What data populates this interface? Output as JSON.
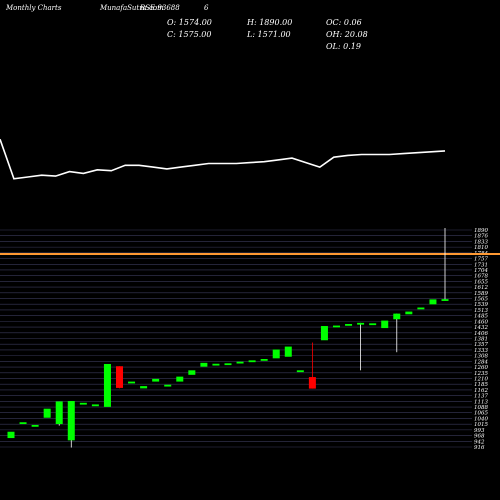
{
  "header": {
    "title": "Monthly Charts",
    "symbol": "MunafaSutra.com",
    "code": "BSE:93688",
    "extra": "6"
  },
  "ohlc": {
    "open": "O: 1574.00",
    "close": "C: 1575.00",
    "high": "H: 1890.00",
    "low": "L: 1571.00",
    "oc": "OC: 0.06",
    "oh": "OH: 20.08",
    "ol": "OL: 0.19"
  },
  "colors": {
    "background": "#000000",
    "up": "#00ff00",
    "down": "#ff0000",
    "line": "#ffffff",
    "level": "#ff9933",
    "grid": "#3a3a5a"
  },
  "chart_data": [
    {
      "type": "line",
      "title": "",
      "xlabel": "",
      "ylabel": "",
      "values": [
        62,
        18,
        20,
        22,
        21,
        26,
        24,
        28,
        27,
        33,
        33,
        31,
        29,
        31,
        33,
        35,
        35,
        35,
        36,
        37,
        39,
        41,
        36,
        31,
        42,
        44,
        45,
        45,
        45,
        46,
        47,
        48,
        49
      ]
    },
    {
      "type": "candlestick",
      "title": "",
      "ylim": [
        916,
        1890
      ],
      "level_line": 1775,
      "y_ticks": [
        "1890",
        "1876",
        "1833",
        "1810",
        "1784",
        "1757",
        "1731",
        "1704",
        "1678",
        "1655",
        "1612",
        "1589",
        "1565",
        "1539",
        "1513",
        "1485",
        "1460",
        "1432",
        "1406",
        "1381",
        "1357",
        "1333",
        "1308",
        "1284",
        "1260",
        "1235",
        "1210",
        "1185",
        "1162",
        "1137",
        "1113",
        "1088",
        "1065",
        "1040",
        "1015",
        "993",
        "968",
        "942",
        "916"
      ],
      "candles": [
        {
          "o": 960,
          "h": 988,
          "l": 960,
          "c": 988
        },
        {
          "o": 1030,
          "h": 1030,
          "l": 1030,
          "c": 1030
        },
        {
          "o": 1018,
          "h": 1018,
          "l": 1018,
          "c": 1018
        },
        {
          "o": 1050,
          "h": 1090,
          "l": 1050,
          "c": 1090
        },
        {
          "o": 1022,
          "h": 1122,
          "l": 1015,
          "c": 1122
        },
        {
          "o": 950,
          "h": 1124,
          "l": 918,
          "c": 1124
        },
        {
          "o": 1116,
          "h": 1116,
          "l": 1116,
          "c": 1116
        },
        {
          "o": 1109,
          "h": 1109,
          "l": 1109,
          "c": 1109
        },
        {
          "o": 1098,
          "h": 1288,
          "l": 1098,
          "c": 1288
        },
        {
          "o": 1278,
          "h": 1278,
          "l": 1180,
          "c": 1182
        },
        {
          "o": 1210,
          "h": 1210,
          "l": 1210,
          "c": 1210
        },
        {
          "o": 1180,
          "h": 1190,
          "l": 1180,
          "c": 1190
        },
        {
          "o": 1210,
          "h": 1222,
          "l": 1210,
          "c": 1222
        },
        {
          "o": 1196,
          "h": 1196,
          "l": 1196,
          "c": 1196
        },
        {
          "o": 1210,
          "h": 1232,
          "l": 1210,
          "c": 1232
        },
        {
          "o": 1240,
          "h": 1260,
          "l": 1240,
          "c": 1260
        },
        {
          "o": 1276,
          "h": 1293,
          "l": 1276,
          "c": 1293
        },
        {
          "o": 1289,
          "h": 1289,
          "l": 1289,
          "c": 1289
        },
        {
          "o": 1291,
          "h": 1291,
          "l": 1291,
          "c": 1291
        },
        {
          "o": 1298,
          "h": 1298,
          "l": 1298,
          "c": 1298
        },
        {
          "o": 1304,
          "h": 1304,
          "l": 1304,
          "c": 1304
        },
        {
          "o": 1310,
          "h": 1310,
          "l": 1310,
          "c": 1310
        },
        {
          "o": 1313,
          "h": 1352,
          "l": 1313,
          "c": 1352
        },
        {
          "o": 1320,
          "h": 1365,
          "l": 1320,
          "c": 1365
        },
        {
          "o": 1260,
          "h": 1260,
          "l": 1260,
          "c": 1260
        },
        {
          "o": 1230,
          "h": 1383,
          "l": 1179,
          "c": 1179
        },
        {
          "o": 1393,
          "h": 1456,
          "l": 1393,
          "c": 1456
        },
        {
          "o": 1458,
          "h": 1458,
          "l": 1458,
          "c": 1458
        },
        {
          "o": 1461,
          "h": 1465,
          "l": 1461,
          "c": 1465
        },
        {
          "o": 1470,
          "h": 1470,
          "l": 1260,
          "c": 1470
        },
        {
          "o": 1468,
          "h": 1468,
          "l": 1468,
          "c": 1468
        },
        {
          "o": 1447,
          "h": 1480,
          "l": 1447,
          "c": 1480
        },
        {
          "o": 1486,
          "h": 1511,
          "l": 1340,
          "c": 1511
        },
        {
          "o": 1508,
          "h": 1520,
          "l": 1508,
          "c": 1520
        },
        {
          "o": 1538,
          "h": 1538,
          "l": 1538,
          "c": 1538
        },
        {
          "o": 1552,
          "h": 1574,
          "l": 1552,
          "c": 1574
        },
        {
          "o": 1574,
          "h": 1890,
          "l": 1571,
          "c": 1575
        }
      ]
    }
  ]
}
